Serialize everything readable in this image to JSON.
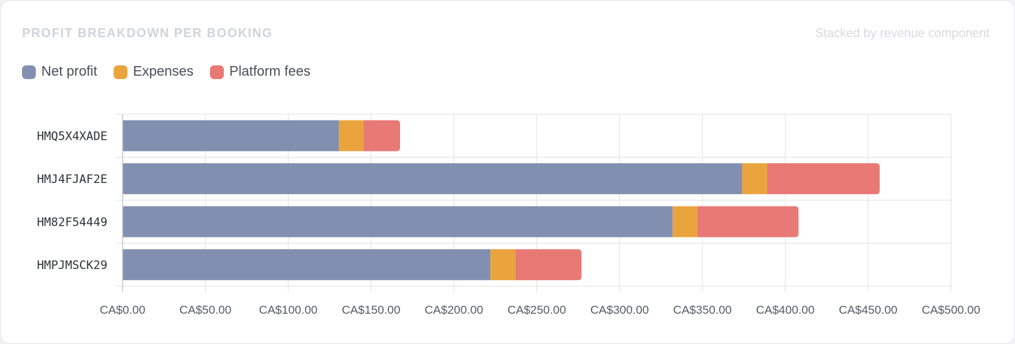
{
  "header": {
    "title": "PROFIT BREAKDOWN PER BOOKING",
    "subtitle": "Stacked by revenue component"
  },
  "colors": {
    "net_profit": "#8190b0",
    "expenses": "#e9a43e",
    "platform_fees": "#e87975",
    "grid": "#e2e2e6",
    "axis": "#c9c9ce"
  },
  "chart_data": {
    "type": "bar",
    "orientation": "horizontal",
    "stacked": true,
    "title": "PROFIT BREAKDOWN PER BOOKING",
    "subtitle": "Stacked by revenue component",
    "categories": [
      "HMQ5X4XADE",
      "HMJ4FJAF2E",
      "HM82F54449",
      "HMPJMSCK29"
    ],
    "series": [
      {
        "name": "Net profit",
        "color": "#8190b0",
        "values": [
          130.5,
          374,
          332,
          222
        ]
      },
      {
        "name": "Expenses",
        "color": "#e9a43e",
        "values": [
          15,
          15,
          15,
          15
        ]
      },
      {
        "name": "Platform fees",
        "color": "#e87975",
        "values": [
          22,
          68,
          61,
          40
        ]
      }
    ],
    "xlim": [
      0,
      500
    ],
    "xticks": [
      0,
      50,
      100,
      150,
      200,
      250,
      300,
      350,
      400,
      450,
      500
    ],
    "xtick_labels": [
      "CA$0.00",
      "CA$50.00",
      "CA$100.00",
      "CA$150.00",
      "CA$200.00",
      "CA$250.00",
      "CA$300.00",
      "CA$350.00",
      "CA$400.00",
      "CA$450.00",
      "CA$500.00"
    ],
    "grid": true,
    "legend": "top-left"
  }
}
